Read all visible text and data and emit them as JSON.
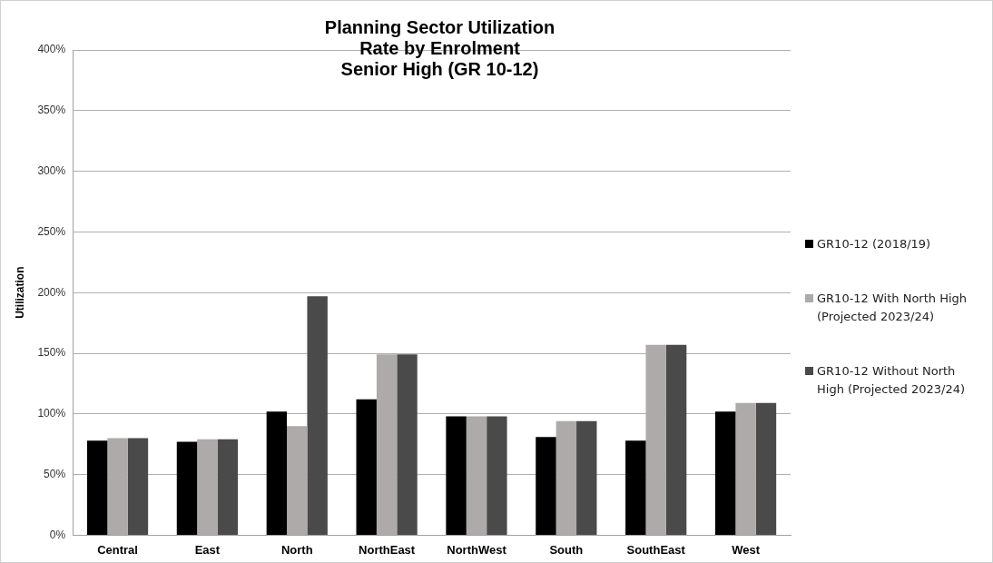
{
  "chart_data": {
    "type": "bar",
    "title": "Planning Sector Utilization\nRate by Enrolment\nSenior High (GR 10-12)",
    "ylabel": "Utilization",
    "categories": [
      "Central",
      "East",
      "North",
      "NorthEast",
      "NorthWest",
      "South",
      "SouthEast",
      "West"
    ],
    "series": [
      {
        "name": "GR10-12 (2018/19)",
        "color": "#000000",
        "values": [
          78,
          77,
          102,
          112,
          98,
          81,
          78,
          102
        ]
      },
      {
        "name": "GR10-12 With North High (Projected 2023/24)",
        "color": "#aeaaaa",
        "values": [
          80,
          79,
          90,
          149,
          98,
          94,
          157,
          109
        ]
      },
      {
        "name": "GR10-12 Without North High (Projected 2023/24)",
        "color": "#4a4a4a",
        "values": [
          80,
          79,
          197,
          149,
          98,
          94,
          157,
          109
        ]
      }
    ],
    "ylim": [
      0,
      400
    ],
    "yticks": [
      {
        "value": 0,
        "label": "0%"
      },
      {
        "value": 50,
        "label": "50%"
      },
      {
        "value": 100,
        "label": "100%"
      },
      {
        "value": 150,
        "label": "150%"
      },
      {
        "value": 200,
        "label": "200%"
      },
      {
        "value": 250,
        "label": "250%"
      },
      {
        "value": 300,
        "label": "300%"
      },
      {
        "value": 350,
        "label": "350%"
      },
      {
        "value": 400,
        "label": "400%"
      }
    ],
    "grid": "y",
    "legend": "right"
  }
}
